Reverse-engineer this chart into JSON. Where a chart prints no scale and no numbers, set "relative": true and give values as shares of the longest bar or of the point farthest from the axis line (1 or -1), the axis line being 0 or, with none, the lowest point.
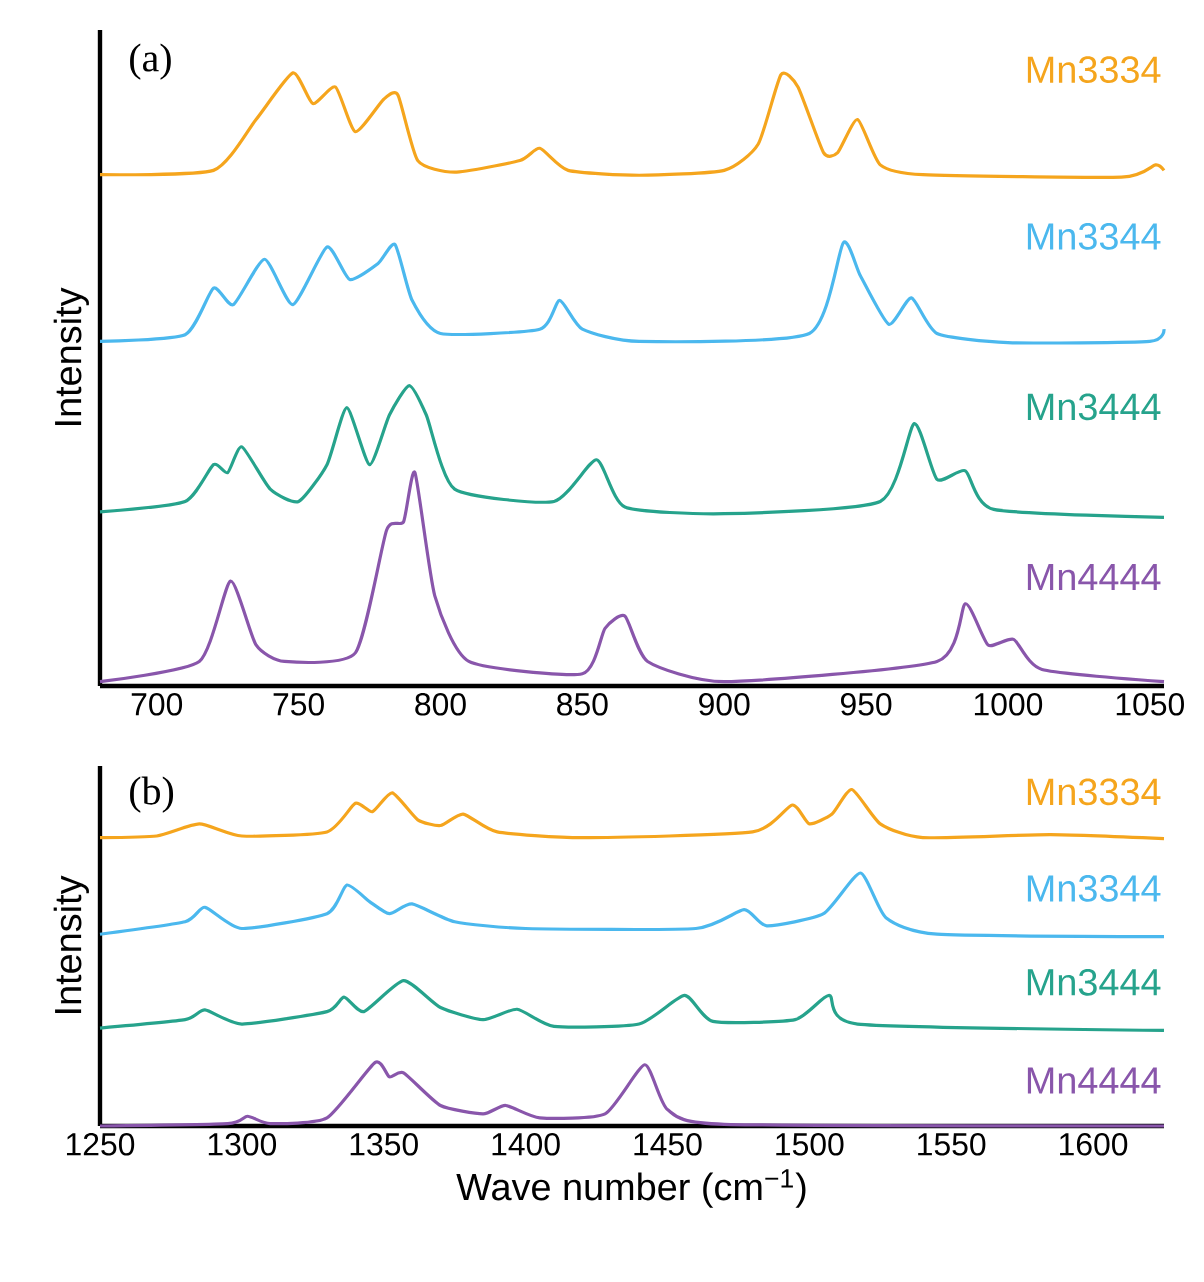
{
  "chart_data": [
    {
      "type": "line",
      "title": "(a)",
      "ylabel": "Intensity",
      "relative": true,
      "tick_labels": "x",
      "xlim": [
        680,
        1055
      ],
      "xticks": [
        700,
        750,
        800,
        850,
        900,
        950,
        1000,
        1050
      ],
      "series": [
        {
          "name": "Mn3334",
          "color": "#f5a51d",
          "x": [
            680,
            720,
            735,
            748,
            755,
            763,
            770,
            780,
            785,
            792,
            805,
            828,
            835,
            845,
            870,
            900,
            912,
            920,
            926,
            935,
            940,
            947,
            955,
            970,
            1040,
            1052,
            1055
          ],
          "values": [
            0.834,
            0.841,
            0.924,
            1.0,
            0.95,
            0.977,
            0.904,
            0.957,
            0.964,
            0.857,
            0.838,
            0.857,
            0.877,
            0.841,
            0.833,
            0.841,
            0.884,
            0.997,
            0.977,
            0.87,
            0.87,
            0.924,
            0.85,
            0.834,
            0.83,
            0.85,
            0.841
          ]
        },
        {
          "name": "Mn3344",
          "color": "#4bb8ee",
          "x": [
            680,
            710,
            720,
            727,
            738,
            748,
            760,
            768,
            778,
            784,
            790,
            800,
            835,
            842,
            850,
            870,
            930,
            942,
            948,
            958,
            966,
            975,
            1000,
            1050,
            1055
          ],
          "values": [
            0.562,
            0.573,
            0.649,
            0.622,
            0.696,
            0.622,
            0.716,
            0.663,
            0.689,
            0.72,
            0.629,
            0.575,
            0.582,
            0.629,
            0.582,
            0.562,
            0.575,
            0.723,
            0.669,
            0.59,
            0.633,
            0.575,
            0.56,
            0.562,
            0.582
          ]
        },
        {
          "name": "Mn3444",
          "color": "#26a38c",
          "x": [
            680,
            710,
            720,
            725,
            730,
            740,
            750,
            760,
            767,
            775,
            782,
            789,
            795,
            805,
            840,
            855,
            865,
            900,
            955,
            967,
            975,
            985,
            995,
            1055
          ],
          "values": [
            0.284,
            0.301,
            0.361,
            0.348,
            0.39,
            0.321,
            0.301,
            0.361,
            0.454,
            0.361,
            0.442,
            0.49,
            0.442,
            0.321,
            0.301,
            0.369,
            0.292,
            0.281,
            0.301,
            0.428,
            0.337,
            0.351,
            0.288,
            0.275
          ]
        },
        {
          "name": "Mn4444",
          "color": "#8956ab",
          "x": [
            680,
            715,
            726,
            735,
            745,
            770,
            781,
            787,
            791,
            798,
            810,
            850,
            858,
            865,
            873,
            900,
            975,
            985,
            993,
            1002,
            1012,
            1055
          ],
          "values": [
            0.007,
            0.04,
            0.171,
            0.067,
            0.04,
            0.054,
            0.254,
            0.268,
            0.348,
            0.147,
            0.04,
            0.02,
            0.094,
            0.114,
            0.04,
            0.007,
            0.04,
            0.134,
            0.067,
            0.076,
            0.027,
            0.007
          ]
        }
      ]
    },
    {
      "type": "line",
      "title": "(b)",
      "ylabel": "Intensity",
      "xlabel": "Wave number (cm$^{−1}$)",
      "relative": true,
      "tick_labels": "x",
      "xlim": [
        1250,
        1625
      ],
      "xticks": [
        1250,
        1300,
        1350,
        1400,
        1450,
        1500,
        1550,
        1600
      ],
      "series": [
        {
          "name": "Mn3334",
          "color": "#f5a51d",
          "x": [
            1250,
            1270,
            1285,
            1300,
            1330,
            1340,
            1346,
            1353,
            1362,
            1370,
            1378,
            1390,
            1420,
            1480,
            1494,
            1500,
            1508,
            1515,
            1525,
            1540,
            1585,
            1625
          ],
          "values": [
            0.857,
            0.862,
            0.898,
            0.862,
            0.874,
            0.959,
            0.934,
            0.99,
            0.91,
            0.893,
            0.927,
            0.874,
            0.857,
            0.874,
            0.954,
            0.898,
            0.927,
            1.0,
            0.898,
            0.857,
            0.866,
            0.854
          ]
        },
        {
          "name": "Mn3344",
          "color": "#4bb8ee",
          "x": [
            1250,
            1280,
            1287,
            1300,
            1330,
            1337,
            1345,
            1352,
            1360,
            1375,
            1400,
            1460,
            1477,
            1485,
            1505,
            1518,
            1527,
            1545,
            1625
          ],
          "values": [
            0.57,
            0.607,
            0.65,
            0.587,
            0.631,
            0.716,
            0.667,
            0.631,
            0.66,
            0.607,
            0.587,
            0.587,
            0.643,
            0.595,
            0.631,
            0.752,
            0.619,
            0.57,
            0.563
          ]
        },
        {
          "name": "Mn3444",
          "color": "#26a38c",
          "x": [
            1250,
            1280,
            1287,
            1300,
            1330,
            1336,
            1343,
            1357,
            1370,
            1385,
            1397,
            1410,
            1440,
            1456,
            1466,
            1495,
            1507,
            1517,
            1625
          ],
          "values": [
            0.291,
            0.316,
            0.345,
            0.303,
            0.34,
            0.383,
            0.34,
            0.432,
            0.352,
            0.316,
            0.347,
            0.296,
            0.303,
            0.388,
            0.311,
            0.316,
            0.388,
            0.303,
            0.284
          ]
        },
        {
          "name": "Mn4444",
          "color": "#8956ab",
          "x": [
            1250,
            1295,
            1302,
            1310,
            1330,
            1347,
            1352,
            1357,
            1370,
            1385,
            1393,
            1405,
            1428,
            1442,
            1450,
            1470,
            1625
          ],
          "values": [
            0,
            0.007,
            0.029,
            0.007,
            0.024,
            0.189,
            0.146,
            0.158,
            0.061,
            0.036,
            0.061,
            0.024,
            0.036,
            0.182,
            0.049,
            0.005,
            0
          ]
        }
      ]
    }
  ]
}
